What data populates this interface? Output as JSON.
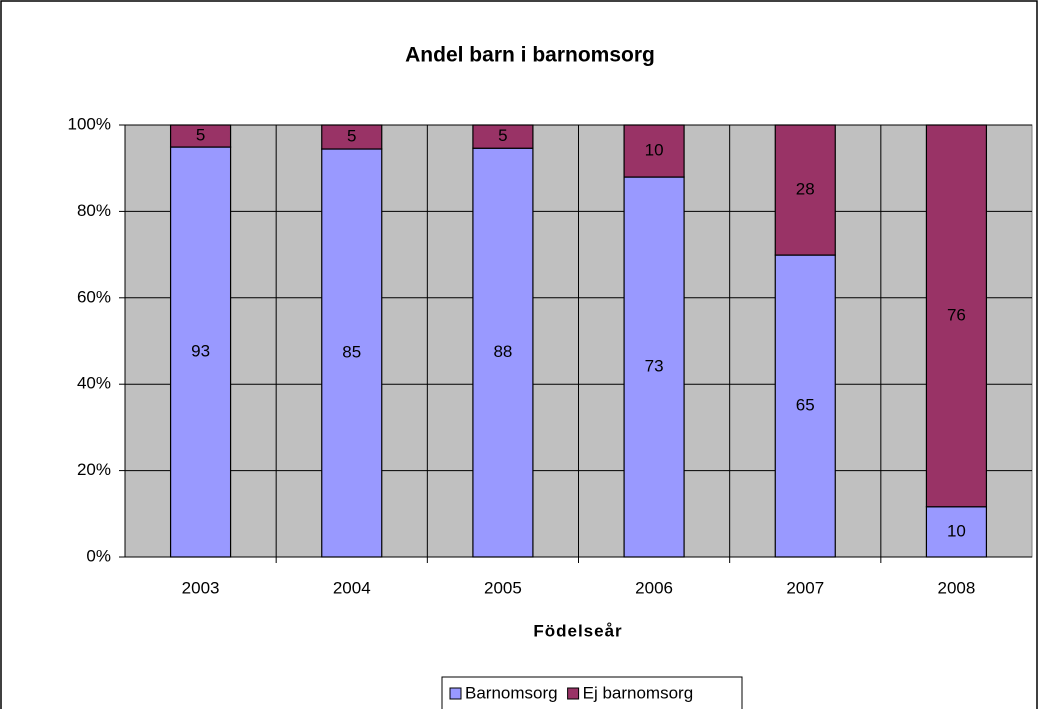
{
  "chart_data": {
    "type": "bar",
    "stacking": "percent",
    "title": "Andel barn i barnomsorg",
    "x_label": "Födelseår",
    "categories": [
      "2003",
      "2004",
      "2005",
      "2006",
      "2007",
      "2008"
    ],
    "series": [
      {
        "name": "Barnomsorg",
        "color": "#9999ff",
        "values": [
          93,
          85,
          88,
          73,
          65,
          10
        ]
      },
      {
        "name": "Ej barnomsorg",
        "color": "#993366",
        "values": [
          5,
          5,
          5,
          10,
          28,
          76
        ]
      }
    ],
    "ylim": [
      0,
      100
    ],
    "yticks": [
      {
        "value": 0,
        "label": "0%"
      },
      {
        "value": 20,
        "label": "20%"
      },
      {
        "value": 40,
        "label": "40%"
      },
      {
        "value": 60,
        "label": "60%"
      },
      {
        "value": 80,
        "label": "80%"
      },
      {
        "value": 100,
        "label": "100%"
      }
    ],
    "grid": true,
    "legend": "bottom",
    "plot_background": "#c0c0c0"
  }
}
